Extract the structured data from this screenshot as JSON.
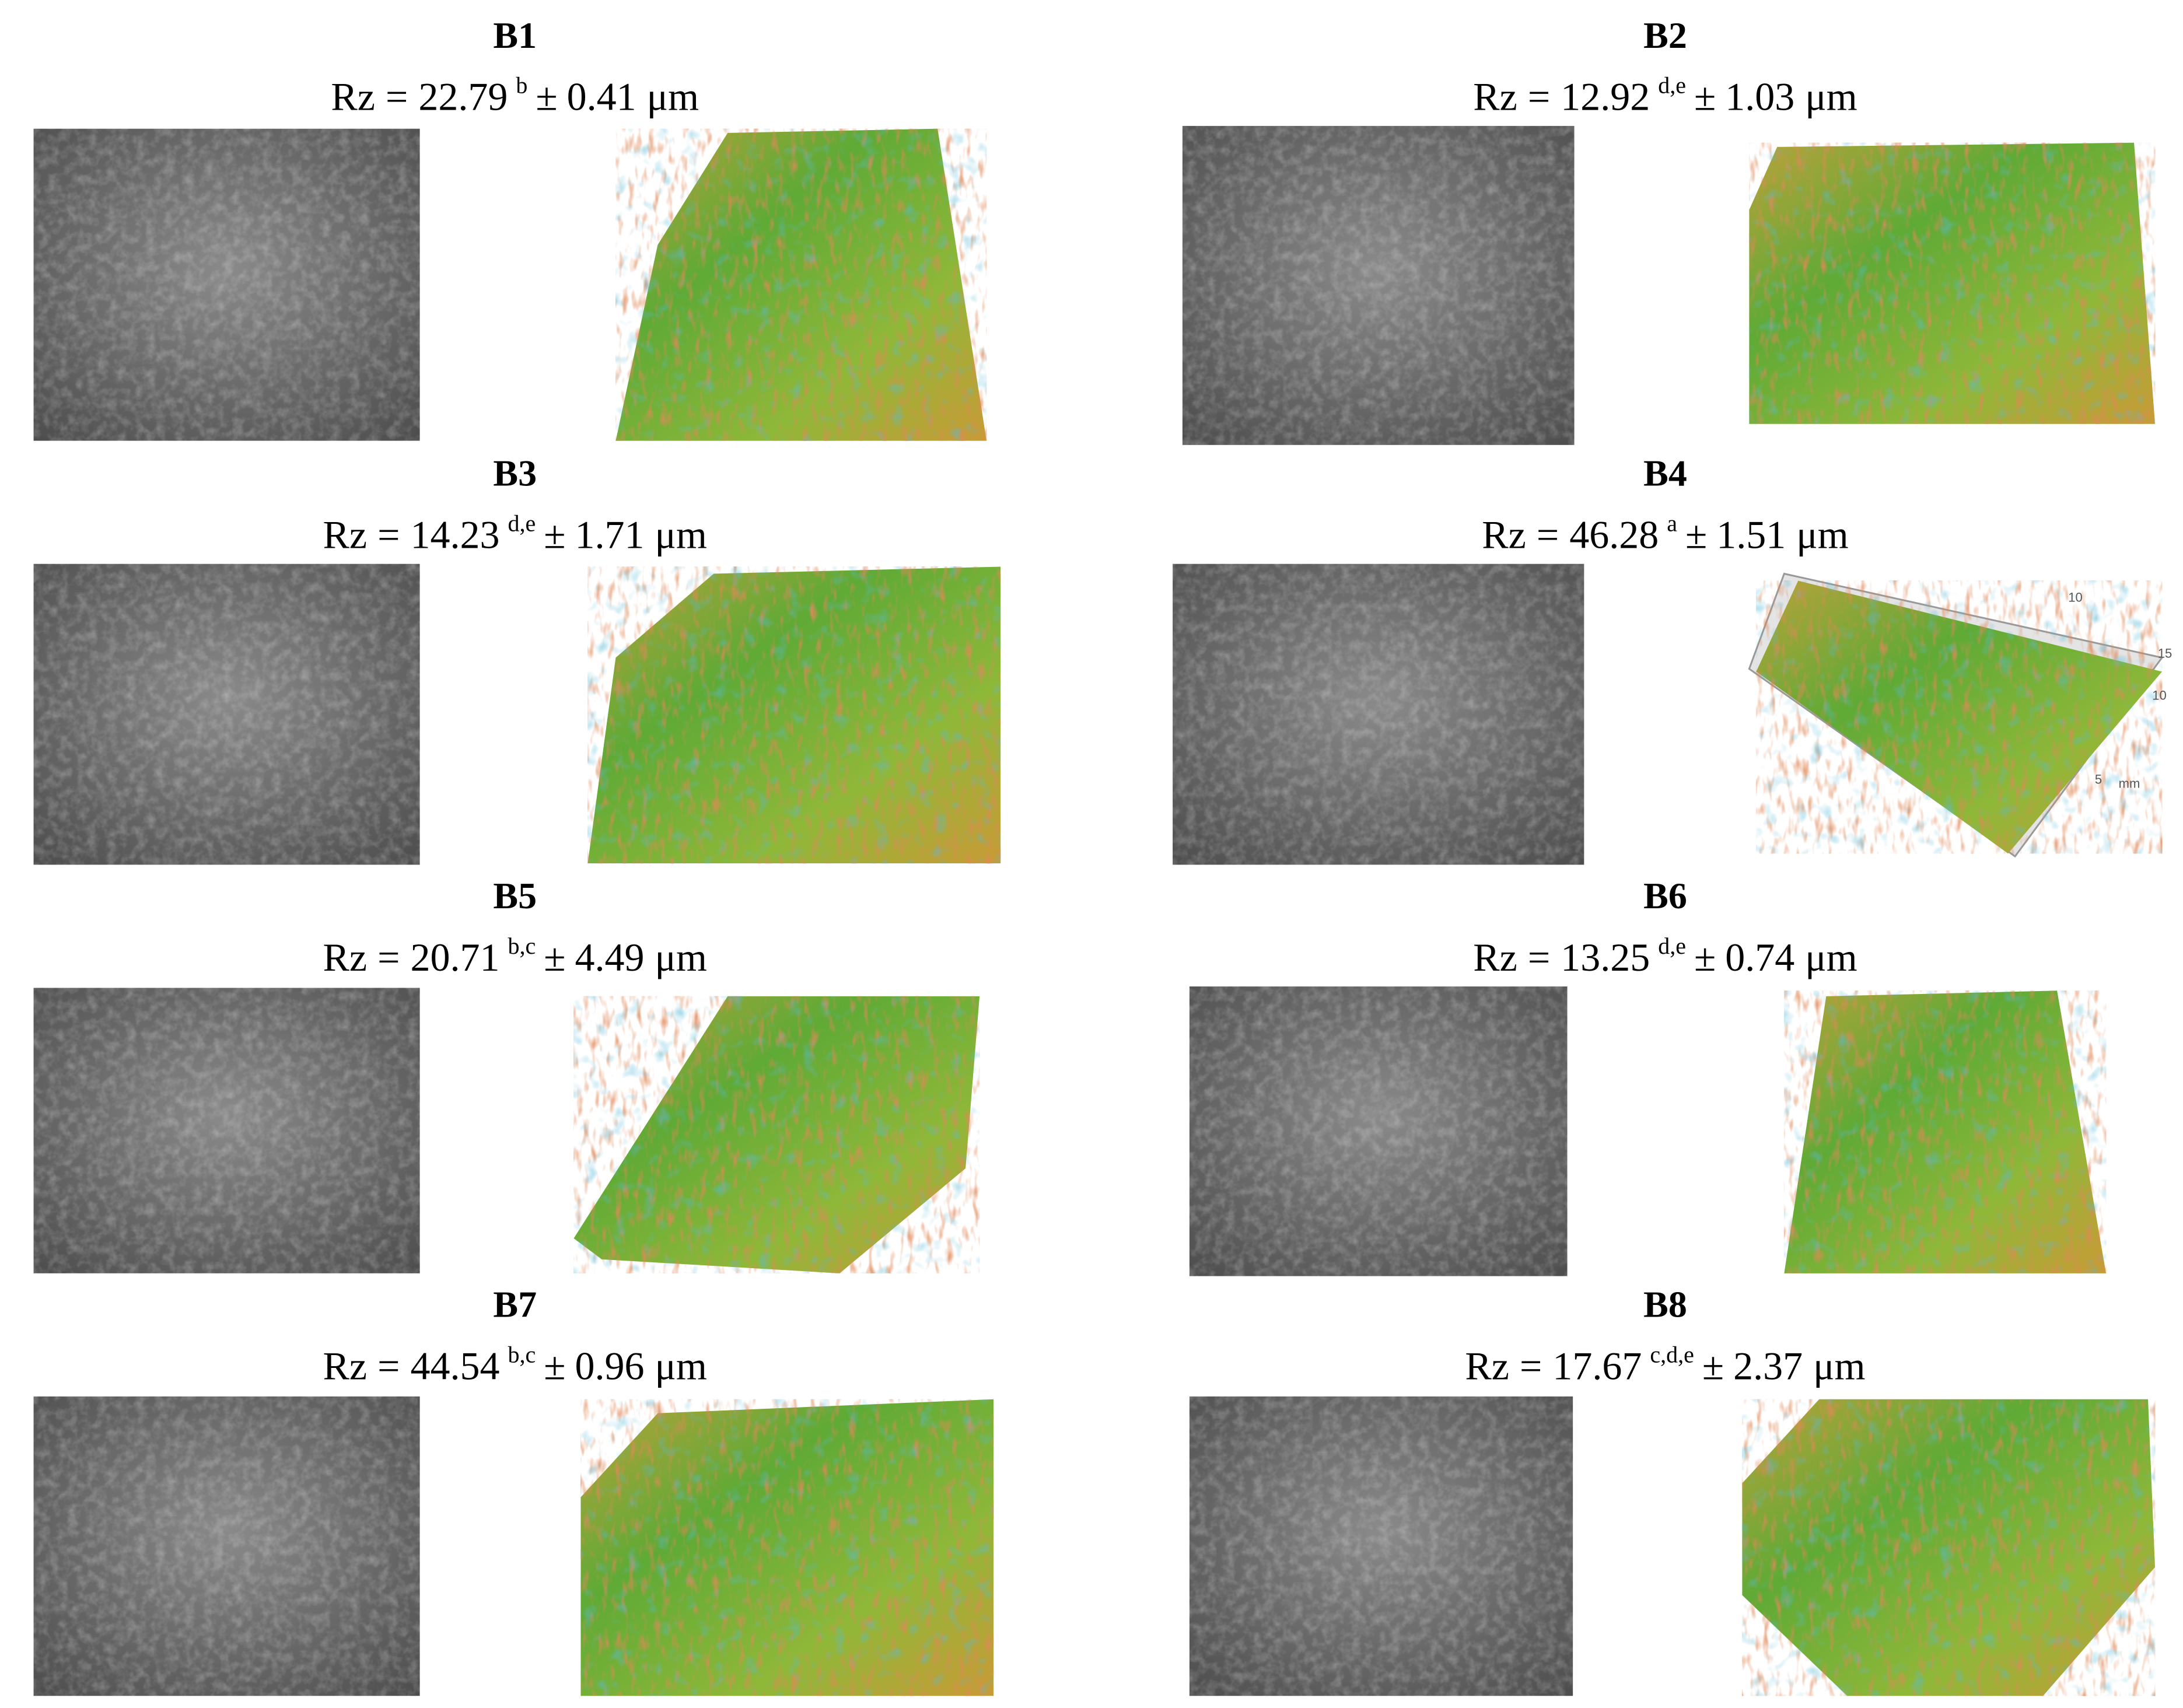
{
  "figure": {
    "panels": [
      {
        "title": "B1",
        "rz": {
          "label": "Rz",
          "eq": "=",
          "mean": "22.79",
          "letters": "b",
          "pm": "±",
          "sd": "0.41",
          "unit": "μm"
        }
      },
      {
        "title": "B2",
        "rz": {
          "label": "Rz",
          "eq": "=",
          "mean": "12.92",
          "letters": "d,e",
          "pm": "±",
          "sd": "1.03",
          "unit": "μm"
        }
      },
      {
        "title": "B3",
        "rz": {
          "label": "Rz",
          "eq": "=",
          "mean": "14.23",
          "letters": "d,e",
          "pm": "±",
          "sd": "1.71",
          "unit": "μm"
        }
      },
      {
        "title": "B4",
        "rz": {
          "label": "Rz",
          "eq": "=",
          "mean": "46.28",
          "letters": "a",
          "pm": "±",
          "sd": "1.51",
          "unit": "μm"
        },
        "plot_labels": [
          "10",
          "15",
          "10",
          "5",
          "mm"
        ]
      },
      {
        "title": "B5",
        "rz": {
          "label": "Rz",
          "eq": "=",
          "mean": "20.71",
          "letters": "b,c",
          "pm": "±",
          "sd": "4.49",
          "unit": "μm"
        }
      },
      {
        "title": "B6",
        "rz": {
          "label": "Rz",
          "eq": "=",
          "mean": "13.25",
          "letters": "d,e",
          "pm": "±",
          "sd": "0.74",
          "unit": "μm"
        }
      },
      {
        "title": "B7",
        "rz": {
          "label": "Rz",
          "eq": "=",
          "mean": "44.54",
          "letters": "b,c",
          "pm": "±",
          "sd": "0.96",
          "unit": "μm"
        }
      },
      {
        "title": "B8",
        "rz": {
          "label": "Rz",
          "eq": "=",
          "mean": "17.67",
          "letters": "c,d,e",
          "pm": "±",
          "sd": "2.37",
          "unit": "μm"
        }
      }
    ]
  }
}
